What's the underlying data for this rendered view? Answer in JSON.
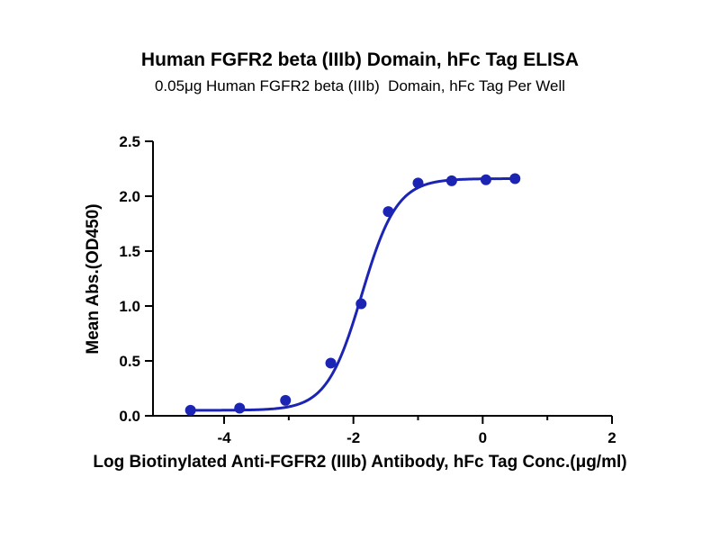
{
  "chart_data": {
    "type": "scatter",
    "title": "Human FGFR2 beta (IIIb) Domain, hFc Tag ELISA",
    "subtitle": "0.05μg Human FGFR2 beta (IIIb)  Domain, hFc Tag Per Well",
    "xlabel": "Log Biotinylated Anti-FGFR2 (IIIb) Antibody, hFc Tag Conc.(μg/ml)",
    "ylabel": "Mean Abs.(OD450)",
    "xlim": [
      -5.1,
      2
    ],
    "ylim": [
      0,
      2.5
    ],
    "xticks": [
      -4,
      -2,
      0,
      2
    ],
    "xtick_labels": [
      "-4",
      "-2",
      "0",
      "2"
    ],
    "xminorticks": [
      -3,
      -1,
      1
    ],
    "yticks": [
      0,
      0.5,
      1,
      1.5,
      2,
      2.5
    ],
    "ytick_labels": [
      "0.0",
      "0.5",
      "1.0",
      "1.5",
      "2.0",
      "2.5"
    ],
    "grid": false,
    "legend": false,
    "axis_color": "#000000",
    "series": [
      {
        "name": "Human FGFR2 beta (IIIb) Domain, hFc Tag",
        "color": "#1c24b4",
        "marker": "circle",
        "marker_radius": 6,
        "points": [
          {
            "x": -4.52,
            "y": 0.05
          },
          {
            "x": -3.76,
            "y": 0.07
          },
          {
            "x": -3.05,
            "y": 0.14
          },
          {
            "x": -2.35,
            "y": 0.48
          },
          {
            "x": -1.88,
            "y": 1.02
          },
          {
            "x": -1.46,
            "y": 1.86
          },
          {
            "x": -1.0,
            "y": 2.12
          },
          {
            "x": -0.48,
            "y": 2.14
          },
          {
            "x": 0.05,
            "y": 2.15
          },
          {
            "x": 0.5,
            "y": 2.16
          }
        ],
        "fit_curve": {
          "model": "4PL-sigmoid",
          "bottom": 0.05,
          "top": 2.16,
          "logEC50": -1.87,
          "hill": 1.6,
          "x_start": -4.55,
          "x_end": 0.52
        }
      }
    ]
  }
}
